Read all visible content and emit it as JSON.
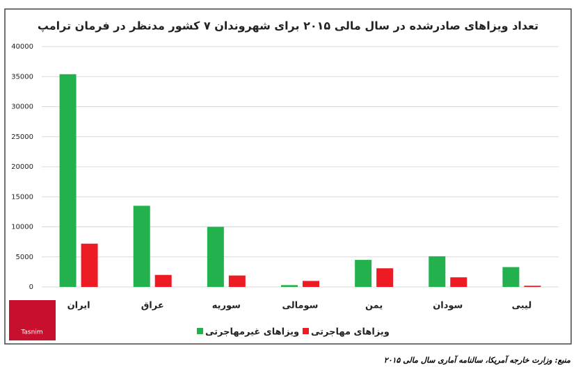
{
  "chart_data": {
    "type": "bar",
    "title": "تعداد ویزاهای صادرشده در سال مالی ۲۰۱۵ برای شهروندان ۷ کشور مدنظر در فرمان ترامپ",
    "categories": [
      "ایران",
      "عراق",
      "سوریه",
      "سومالی",
      "یمن",
      "سودان",
      "لیبی"
    ],
    "series": [
      {
        "name": "ویزاهای غیرمهاجرتی",
        "color": "#22b14c",
        "values": [
          35400,
          13500,
          10000,
          300,
          4500,
          5100,
          3300
        ]
      },
      {
        "name": "ویزاهای مهاجرتی",
        "color": "#ed1c24",
        "values": [
          7200,
          2000,
          1900,
          1000,
          3100,
          1600,
          200
        ]
      }
    ],
    "ylim": [
      0,
      40000
    ],
    "yticks": [
      0,
      5000,
      10000,
      15000,
      20000,
      25000,
      30000,
      35000,
      40000
    ],
    "grid": true,
    "legend": "bottom"
  },
  "logo": "Tasnim",
  "source": "منبع: وزارت خارجه آمریکا، سالنامه آماری سال مالی ۲۰۱۵"
}
